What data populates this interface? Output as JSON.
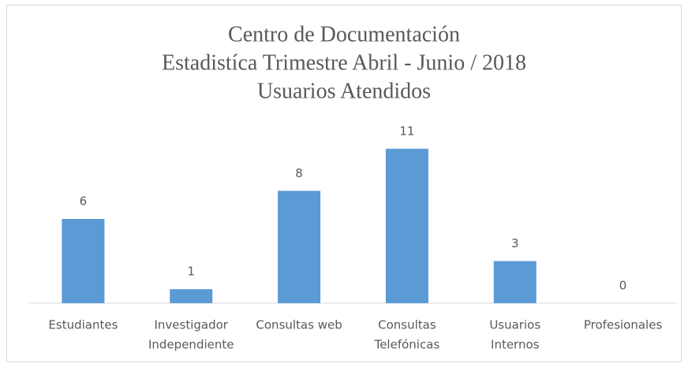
{
  "chart_data": {
    "type": "bar",
    "title": [
      "Centro de Documentación",
      "Estadistíca Trimestre Abril - Junio / 2018",
      "Usuarios Atendidos"
    ],
    "categories": [
      [
        "Estudiantes"
      ],
      [
        "Investigador",
        "Independiente"
      ],
      [
        "Consultas web"
      ],
      [
        "Consultas",
        "Telefónicas"
      ],
      [
        "Usuarios",
        "Internos"
      ],
      [
        "Profesionales"
      ]
    ],
    "values": [
      6,
      1,
      8,
      11,
      3,
      0
    ],
    "color": "#5b9bd5",
    "ylim": [
      0,
      12
    ]
  }
}
